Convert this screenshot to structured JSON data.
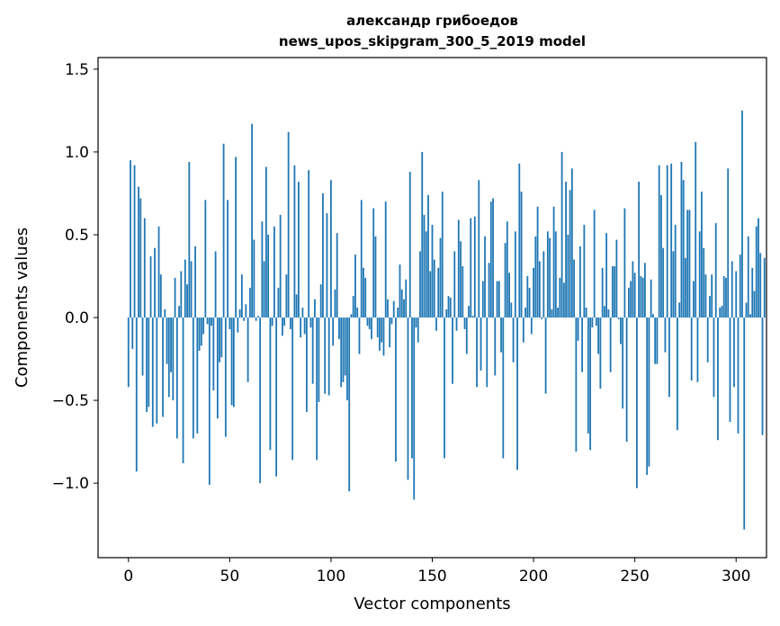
{
  "chart_data": {
    "type": "bar",
    "title": "александр грибоедов",
    "subtitle": "news_upos_skipgram_300_5_2019 model",
    "xlabel": "Vector components",
    "ylabel": "Components values",
    "xlim": [
      -15,
      315
    ],
    "ylim": [
      -1.45,
      1.57
    ],
    "xticks": [
      0,
      50,
      100,
      150,
      200,
      250,
      300
    ],
    "yticks": [
      -1.0,
      -0.5,
      0.0,
      0.5,
      1.0,
      1.5
    ],
    "xtick_labels": [
      "0",
      "50",
      "100",
      "150",
      "200",
      "250",
      "300"
    ],
    "ytick_labels": [
      "−1.0",
      "−0.5",
      "0.0",
      "0.5",
      "1.0",
      "1.5"
    ],
    "grid": false,
    "bar_color": "#1f77b4",
    "values": [
      -0.42,
      0.95,
      -0.19,
      0.92,
      -0.93,
      0.79,
      0.72,
      -0.35,
      0.6,
      -0.57,
      -0.54,
      0.37,
      -0.66,
      0.42,
      -0.64,
      0.55,
      0.26,
      -0.6,
      0.05,
      -0.28,
      -0.48,
      -0.33,
      -0.5,
      0.24,
      -0.73,
      0.07,
      0.28,
      -0.88,
      0.35,
      0.2,
      0.94,
      0.34,
      -0.73,
      0.43,
      -0.7,
      -0.2,
      -0.17,
      -0.1,
      0.71,
      -0.04,
      -1.01,
      -0.05,
      -0.44,
      0.4,
      -0.61,
      -0.27,
      -0.24,
      1.05,
      -0.72,
      0.71,
      -0.07,
      -0.53,
      -0.54,
      0.97,
      -0.09,
      0.05,
      0.26,
      -0.02,
      0.08,
      -0.39,
      0.18,
      1.17,
      0.47,
      -0.02,
      0.01,
      -1.0,
      0.58,
      0.34,
      0.91,
      0.5,
      -0.8,
      -0.05,
      0.55,
      -0.96,
      0.18,
      0.62,
      -0.11,
      -0.05,
      0.26,
      1.12,
      -0.07,
      -0.86,
      0.92,
      0.14,
      0.82,
      -0.12,
      0.06,
      -0.1,
      -0.57,
      0.89,
      -0.06,
      -0.4,
      0.11,
      -0.86,
      -0.51,
      0.2,
      0.75,
      -0.46,
      0.63,
      -0.47,
      0.83,
      -0.17,
      0.17,
      0.51,
      -0.13,
      -0.42,
      -0.39,
      -0.35,
      -0.5,
      -1.05,
      0.02,
      0.13,
      0.38,
      0.06,
      -0.22,
      0.71,
      0.3,
      0.24,
      -0.05,
      -0.07,
      -0.13,
      0.66,
      0.49,
      -0.12,
      -0.2,
      -0.15,
      -0.23,
      0.7,
      0.11,
      -0.18,
      -0.04,
      0.1,
      -0.87,
      0.06,
      0.32,
      0.17,
      0.11,
      0.23,
      -0.98,
      0.88,
      -0.85,
      -1.1,
      -0.06,
      -0.15,
      0.4,
      1.0,
      0.62,
      0.52,
      0.74,
      0.28,
      0.56,
      0.35,
      -0.08,
      0.3,
      0.48,
      0.76,
      -0.85,
      0.05,
      0.13,
      0.12,
      -0.4,
      0.4,
      -0.08,
      0.59,
      0.46,
      0.31,
      -0.07,
      -0.22,
      0.07,
      0.6,
      0.01,
      0.61,
      -0.42,
      0.83,
      -0.32,
      0.22,
      0.49,
      -0.42,
      0.33,
      0.7,
      0.72,
      -0.35,
      0.22,
      0.22,
      -0.21,
      -0.85,
      0.45,
      0.58,
      0.27,
      0.09,
      -0.27,
      0.52,
      -0.92,
      0.93,
      0.76,
      -0.15,
      0.06,
      0.25,
      0.18,
      -0.1,
      0.3,
      0.49,
      0.67,
      0.34,
      -0.01,
      0.4,
      -0.46,
      0.52,
      0.48,
      0.05,
      0.67,
      0.52,
      0.06,
      0.24,
      1.0,
      0.21,
      0.82,
      0.5,
      0.77,
      0.9,
      0.35,
      -0.81,
      -0.14,
      0.43,
      -0.33,
      0.56,
      0.06,
      -0.7,
      -0.8,
      -0.06,
      0.65,
      -0.05,
      -0.22,
      -0.43,
      0.3,
      0.07,
      0.51,
      0.05,
      -0.33,
      0.31,
      0.31,
      0.47,
      -0.01,
      -0.16,
      -0.55,
      0.66,
      -0.75,
      0.18,
      0.22,
      0.34,
      0.27,
      -1.03,
      0.82,
      0.25,
      0.24,
      0.33,
      -0.95,
      -0.9,
      0.23,
      0.02,
      -0.28,
      -0.28,
      0.92,
      0.74,
      0.42,
      -0.21,
      0.92,
      -0.48,
      0.93,
      0.4,
      0.56,
      -0.68,
      0.09,
      0.94,
      0.83,
      0.36,
      0.65,
      0.65,
      -0.38,
      0.22,
      1.06,
      -0.39,
      0.52,
      0.76,
      0.42,
      0.26,
      -0.27,
      0.13,
      0.26,
      -0.48,
      0.57,
      -0.74,
      0.06,
      0.07,
      0.25,
      0.24,
      0.9,
      -0.63,
      0.34,
      -0.42,
      0.28,
      -0.7,
      0.38,
      1.25,
      -1.28,
      0.09,
      0.49,
      0.02,
      0.3,
      0.16,
      0.55,
      0.6,
      0.39,
      -0.71,
      0.36
    ]
  }
}
